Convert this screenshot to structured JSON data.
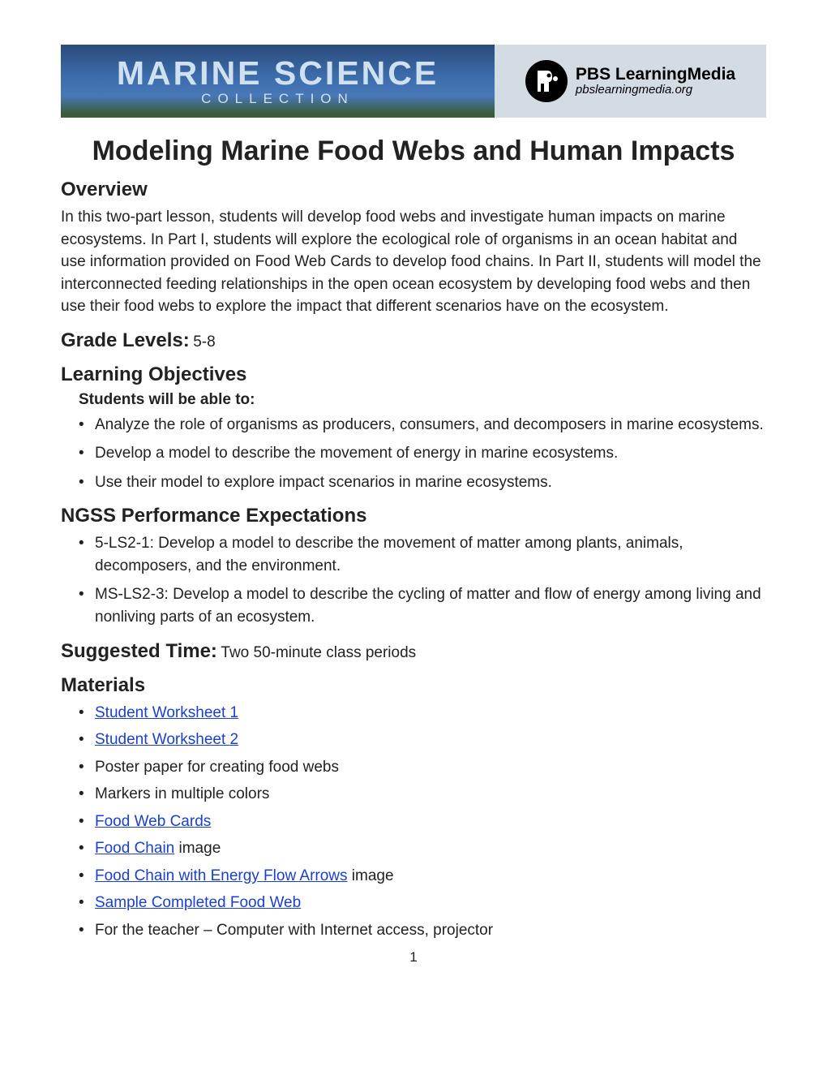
{
  "banner": {
    "title_main": "MARINE SCIENCE",
    "title_sub": "COLLECTION",
    "pbs_main": "PBS LearningMedia",
    "pbs_sub": "pbslearningmedia.org",
    "banner_bg_top": "#2a4a7a",
    "banner_bg_bottom": "#3a5a3a",
    "right_bg": "#d3dbe3"
  },
  "title": "Modeling Marine Food Webs and Human Impacts",
  "overview": {
    "heading": "Overview",
    "text": "In this two-part lesson, students will develop food webs and investigate human impacts on marine ecosystems. In Part I, students will explore the ecological role of organisms in an ocean habitat and use information provided on Food Web Cards to develop food chains. In Part II, students will model the interconnected feeding relationships in the open ocean ecosystem by developing food webs and then use their food webs to explore the impact that different scenarios have on the ecosystem."
  },
  "grade_levels": {
    "label": "Grade Levels:",
    "value": "5-8"
  },
  "objectives": {
    "heading": "Learning Objectives",
    "sub_heading": "Students will be able to:",
    "items": [
      "Analyze the role of organisms as producers, consumers, and decomposers in marine ecosystems.",
      "Develop a model to describe the movement of energy in marine ecosystems.",
      "Use their model to explore impact scenarios in marine ecosystems."
    ]
  },
  "ngss": {
    "heading": "NGSS Performance Expectations",
    "items": [
      "5-LS2-1: Develop a model to describe the movement of matter among plants, animals, decomposers, and the environment.",
      "MS-LS2-3: Develop a model to describe the cycling of matter and flow of energy among living and nonliving parts of an ecosystem."
    ]
  },
  "suggested_time": {
    "label": "Suggested Time:",
    "value": "Two 50-minute class periods"
  },
  "materials": {
    "heading": "Materials",
    "items": [
      {
        "link": "Student Worksheet 1",
        "suffix": ""
      },
      {
        "link": "Student Worksheet 2",
        "suffix": ""
      },
      {
        "link": "",
        "suffix": "Poster paper for creating food webs"
      },
      {
        "link": "",
        "suffix": "Markers in multiple colors"
      },
      {
        "link": "Food Web Cards",
        "suffix": ""
      },
      {
        "link": "Food Chain",
        "suffix": " image"
      },
      {
        "link": "Food Chain with Energy Flow Arrows",
        "suffix": " image"
      },
      {
        "link": "Sample Completed Food Web",
        "suffix": ""
      },
      {
        "link": "",
        "suffix": "For the teacher – Computer with Internet access, projector"
      }
    ]
  },
  "page_number": "1",
  "colors": {
    "link": "#1a3fd1",
    "text": "#222222"
  }
}
